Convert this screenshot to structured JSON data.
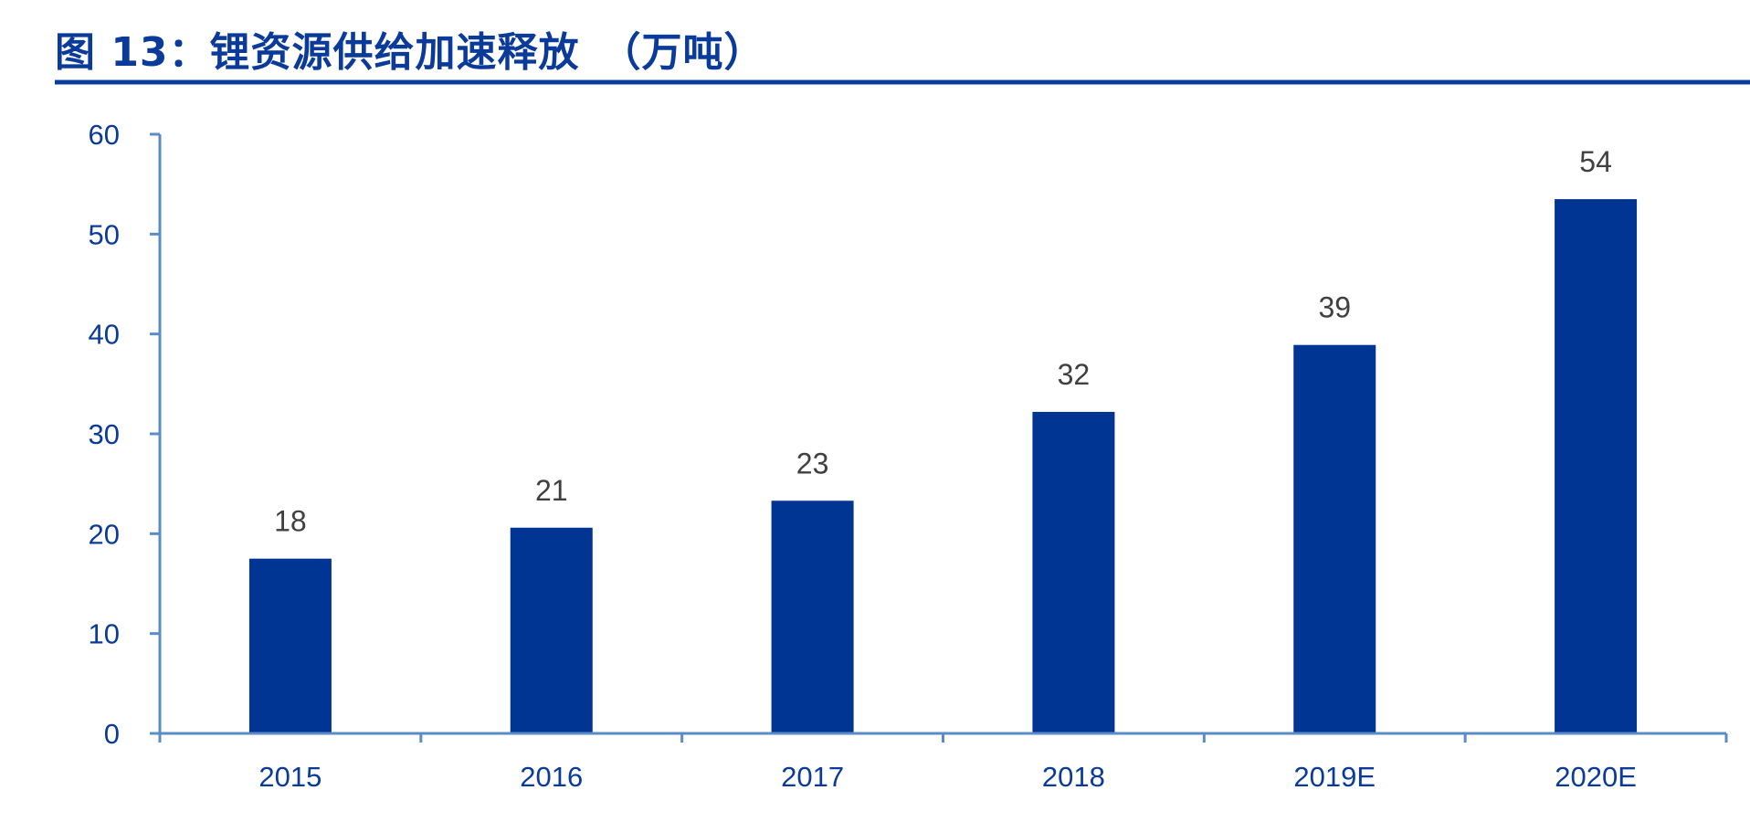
{
  "header": {
    "title": "图 13：锂资源供给加速释放　（万吨）"
  },
  "colors": {
    "title": "#0a3a9a",
    "bar": "#003594",
    "axis": "#5b8cc8",
    "tick_label": "#0a3a9a",
    "data_label": "#404040"
  },
  "chart_data": {
    "type": "bar",
    "title": "图 13：锂资源供给加速释放 （万吨）",
    "xlabel": "",
    "ylabel": "",
    "unit": "万吨",
    "categories": [
      "2015",
      "2016",
      "2017",
      "2018",
      "2019E",
      "2020E"
    ],
    "values": [
      17.5,
      20.6,
      23.3,
      32.2,
      38.9,
      53.5
    ],
    "data_labels": [
      "18",
      "21",
      "23",
      "32",
      "39",
      "54"
    ],
    "ylim": [
      0,
      60
    ],
    "yticks": [
      0,
      10,
      20,
      30,
      40,
      50,
      60
    ],
    "grid": false,
    "legend": null
  }
}
